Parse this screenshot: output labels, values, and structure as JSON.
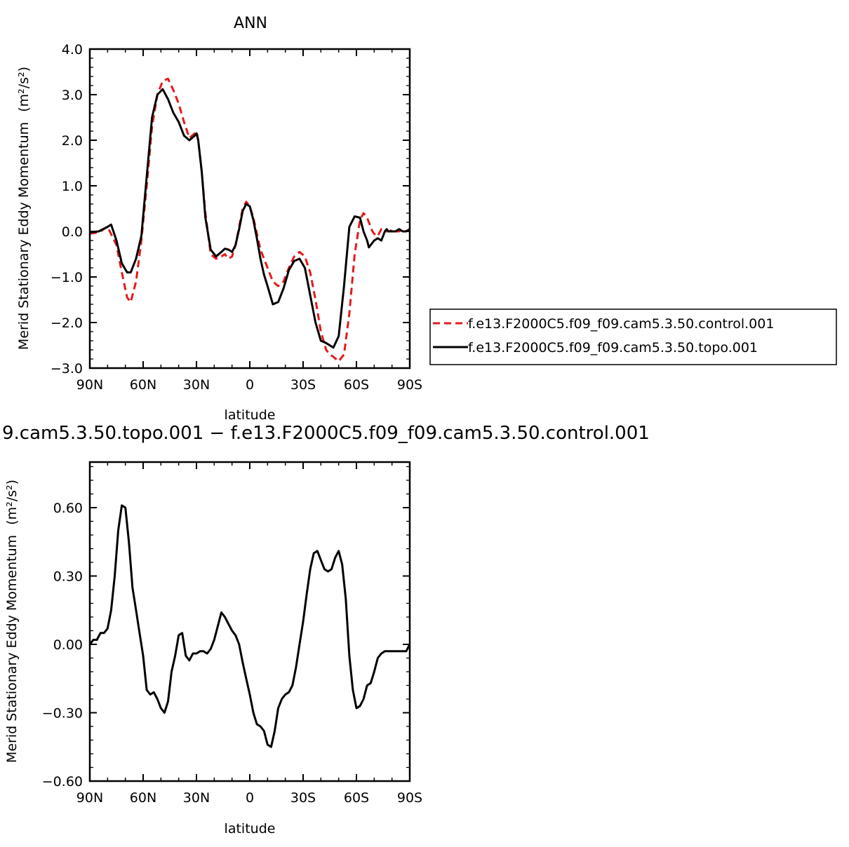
{
  "chart_data": [
    {
      "type": "line",
      "title": "ANN",
      "xlabel": "latitude",
      "ylabel": "Merid Stationary Eddy Momentum",
      "ylabel_unit": "(m²/s²)",
      "x_ticks": [
        "90N",
        "60N",
        "30N",
        "0",
        "30S",
        "60S",
        "90S"
      ],
      "x_tick_values": [
        90,
        60,
        30,
        0,
        -30,
        -60,
        -90
      ],
      "xlim": [
        90,
        -90
      ],
      "y_ticks": [
        "4.0",
        "3.0",
        "2.0",
        "1.0",
        "0.0",
        "−1.0",
        "−2.0",
        "−3.0"
      ],
      "y_tick_values": [
        4,
        3,
        2,
        1,
        0,
        -1,
        -2,
        -3
      ],
      "ylim": [
        -3,
        4
      ],
      "legend_placement": "right",
      "series": [
        {
          "name": "f.e13.F2000C5.f09_f09.cam5.3.50.control.001",
          "color": "#e41a1c",
          "style": "dashed",
          "x": [
            90,
            85,
            80,
            75,
            72,
            69,
            67,
            64,
            61,
            58,
            55,
            52,
            49,
            46,
            43,
            40,
            37,
            34,
            31,
            30,
            29,
            27,
            25,
            22,
            19,
            16,
            14,
            12,
            10,
            8,
            6,
            4,
            2,
            0,
            -2,
            -4,
            -6,
            -8,
            -10,
            -13,
            -16,
            -19,
            -22,
            -25,
            -28,
            -31,
            -34,
            -37,
            -40,
            -43,
            -45,
            -47,
            -50,
            -53,
            -56,
            -59,
            -62,
            -64,
            -66,
            -68,
            -69,
            -70,
            -71,
            -72,
            -74,
            -76,
            -77,
            -78,
            -79,
            -80,
            -82,
            -84,
            -86,
            -88,
            -90
          ],
          "y": [
            -0.05,
            -0.02,
            0.1,
            -0.3,
            -0.9,
            -1.45,
            -1.55,
            -1.1,
            -0.2,
            1.0,
            2.3,
            3.0,
            3.3,
            3.35,
            3.1,
            2.8,
            2.4,
            2.05,
            2.15,
            2.2,
            2.0,
            1.3,
            0.4,
            -0.5,
            -0.6,
            -0.55,
            -0.5,
            -0.6,
            -0.55,
            -0.3,
            0.1,
            0.5,
            0.65,
            0.55,
            0.3,
            -0.05,
            -0.4,
            -0.6,
            -0.8,
            -1.1,
            -1.2,
            -1.1,
            -0.8,
            -0.55,
            -0.45,
            -0.55,
            -0.9,
            -1.5,
            -2.2,
            -2.6,
            -2.7,
            -2.75,
            -2.85,
            -2.7,
            -1.8,
            -0.5,
            0.25,
            0.4,
            0.3,
            0.1,
            0.0,
            -0.05,
            -0.1,
            -0.1,
            0.05,
            0.0,
            0.0,
            0.0,
            0.0,
            0.05,
            0.0,
            0.0,
            0.05,
            0.0,
            0.05
          ]
        },
        {
          "name": "f.e13.F2000C5.f09_f09.cam5.3.50.topo.001",
          "color": "#000000",
          "style": "solid",
          "x": [
            90,
            85,
            80,
            78,
            75,
            72,
            69,
            67,
            64,
            61,
            58,
            55,
            52,
            49,
            46,
            43,
            40,
            37,
            34,
            31,
            30,
            29,
            27,
            25,
            22,
            19,
            16,
            14,
            12,
            10,
            8,
            6,
            4,
            2,
            0,
            -2,
            -4,
            -6,
            -8,
            -10,
            -13,
            -16,
            -19,
            -22,
            -25,
            -28,
            -31,
            -34,
            -37,
            -40,
            -43,
            -45,
            -47,
            -50,
            -53,
            -56,
            -59,
            -62,
            -64,
            -66,
            -67,
            -68,
            -70,
            -72,
            -74,
            -76,
            -77,
            -78,
            -79,
            -80,
            -82,
            -84,
            -86,
            -88,
            -90
          ],
          "y": [
            -0.02,
            0.0,
            0.1,
            0.15,
            -0.2,
            -0.7,
            -0.9,
            -0.9,
            -0.6,
            -0.1,
            1.2,
            2.5,
            3.0,
            3.12,
            2.9,
            2.6,
            2.4,
            2.1,
            2.0,
            2.1,
            2.15,
            2.0,
            1.3,
            0.3,
            -0.4,
            -0.55,
            -0.45,
            -0.38,
            -0.4,
            -0.45,
            -0.3,
            0.05,
            0.45,
            0.6,
            0.55,
            0.25,
            -0.15,
            -0.6,
            -0.95,
            -1.2,
            -1.6,
            -1.55,
            -1.25,
            -0.85,
            -0.65,
            -0.6,
            -0.8,
            -1.4,
            -2.0,
            -2.4,
            -2.45,
            -2.5,
            -2.55,
            -2.3,
            -1.2,
            0.1,
            0.33,
            0.3,
            0.0,
            -0.2,
            -0.35,
            -0.3,
            -0.2,
            -0.15,
            -0.2,
            0.0,
            0.05,
            0.0,
            0.0,
            0.0,
            0.0,
            0.05,
            0.0,
            0.0,
            0.05
          ]
        }
      ]
    },
    {
      "type": "line",
      "title": "9.cam5.3.50.topo.001 − f.e13.F2000C5.f09_f09.cam5.3.50.control.001",
      "xlabel": "latitude",
      "ylabel": "Merid Stationary Eddy Momentum",
      "ylabel_unit": "(m²/s²)",
      "x_ticks": [
        "90N",
        "60N",
        "30N",
        "0",
        "30S",
        "60S",
        "90S"
      ],
      "x_tick_values": [
        90,
        60,
        30,
        0,
        -30,
        -60,
        -90
      ],
      "xlim": [
        90,
        -90
      ],
      "y_ticks": [
        "0.60",
        "0.30",
        "0.00",
        "−0.30",
        "−0.60"
      ],
      "y_tick_values": [
        0.6,
        0.3,
        0,
        -0.3,
        -0.6
      ],
      "ylim": [
        -0.6,
        0.8
      ],
      "series": [
        {
          "color": "#000000",
          "style": "solid",
          "x": [
            90,
            88,
            86,
            84,
            82,
            80,
            78,
            76,
            74,
            72,
            70,
            68,
            66,
            64,
            62,
            60,
            58,
            56,
            54,
            52,
            50,
            48,
            46,
            44,
            42,
            40,
            38,
            36,
            34,
            32,
            30,
            28,
            26,
            24,
            22,
            20,
            18,
            16,
            14,
            12,
            10,
            8,
            6,
            4,
            2,
            0,
            -2,
            -4,
            -6,
            -8,
            -10,
            -12,
            -14,
            -16,
            -18,
            -20,
            -22,
            -24,
            -26,
            -28,
            -30,
            -32,
            -34,
            -36,
            -38,
            -40,
            -42,
            -44,
            -46,
            -48,
            -50,
            -52,
            -54,
            -56,
            -58,
            -60,
            -62,
            -64,
            -66,
            -68,
            -70,
            -72,
            -74,
            -76,
            -78,
            -80,
            -82,
            -84,
            -86,
            -88,
            -90
          ],
          "y": [
            0.0,
            0.02,
            0.02,
            0.05,
            0.05,
            0.07,
            0.15,
            0.3,
            0.5,
            0.61,
            0.6,
            0.45,
            0.25,
            0.15,
            0.05,
            -0.05,
            -0.2,
            -0.22,
            -0.21,
            -0.24,
            -0.28,
            -0.3,
            -0.25,
            -0.12,
            -0.05,
            0.04,
            0.05,
            -0.05,
            -0.07,
            -0.04,
            -0.04,
            -0.03,
            -0.03,
            -0.04,
            -0.02,
            0.02,
            0.08,
            0.14,
            0.12,
            0.09,
            0.06,
            0.04,
            0.0,
            -0.08,
            -0.15,
            -0.22,
            -0.3,
            -0.35,
            -0.36,
            -0.38,
            -0.44,
            -0.45,
            -0.38,
            -0.28,
            -0.24,
            -0.22,
            -0.21,
            -0.18,
            -0.1,
            0.0,
            0.1,
            0.22,
            0.33,
            0.4,
            0.41,
            0.37,
            0.33,
            0.32,
            0.33,
            0.38,
            0.41,
            0.35,
            0.2,
            -0.05,
            -0.2,
            -0.28,
            -0.27,
            -0.24,
            -0.18,
            -0.17,
            -0.12,
            -0.06,
            -0.04,
            -0.03,
            -0.03,
            -0.03,
            -0.03,
            -0.03,
            -0.03,
            -0.03,
            0.0
          ]
        }
      ]
    }
  ]
}
